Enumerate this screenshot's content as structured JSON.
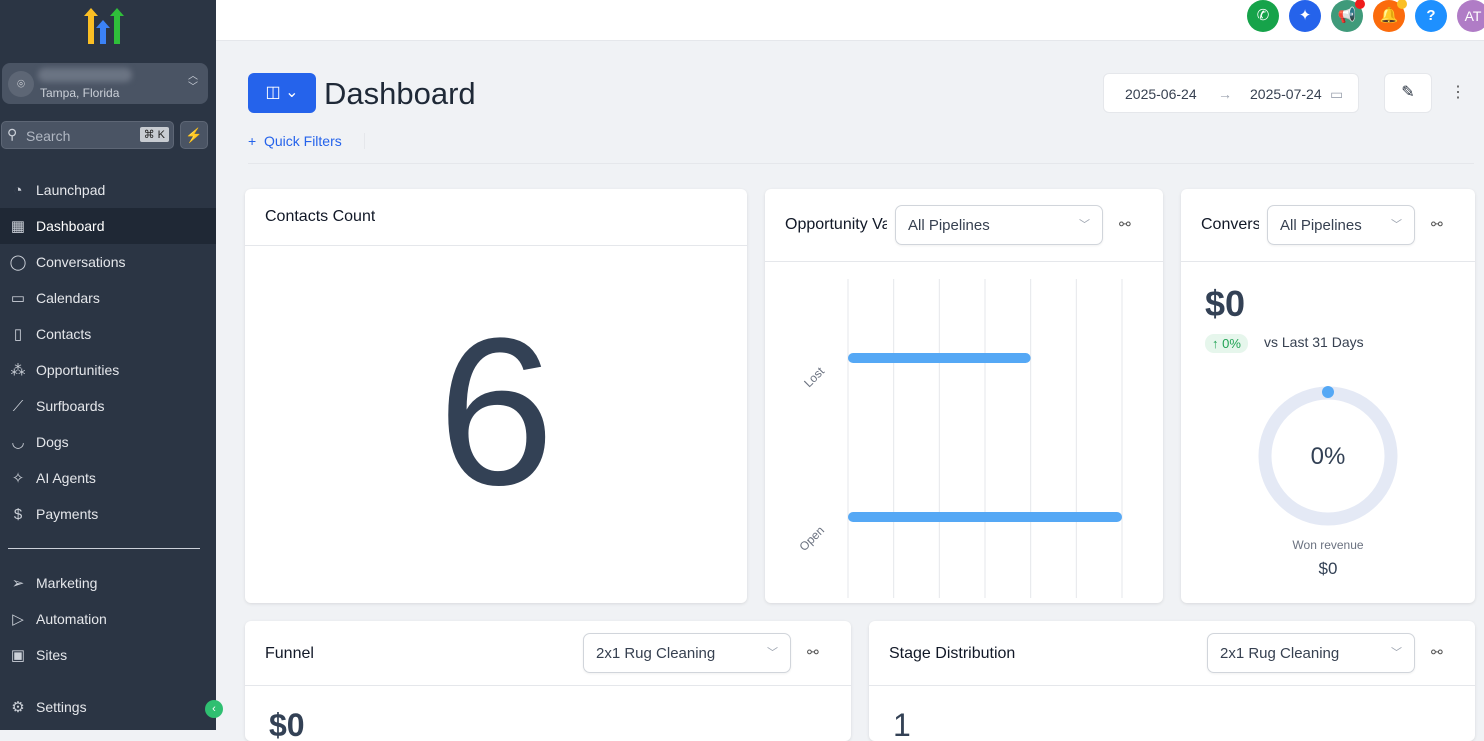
{
  "sidebar": {
    "location": "Tampa, Florida",
    "search_placeholder": "Search",
    "shortcut": "⌘ K",
    "items": [
      {
        "label": "Launchpad",
        "icon": "rocket-icon"
      },
      {
        "label": "Dashboard",
        "icon": "grid-icon"
      },
      {
        "label": "Conversations",
        "icon": "chat-icon"
      },
      {
        "label": "Calendars",
        "icon": "calendar-icon"
      },
      {
        "label": "Contacts",
        "icon": "contacts-icon"
      },
      {
        "label": "Opportunities",
        "icon": "network-icon"
      },
      {
        "label": "Surfboards",
        "icon": "surfboard-icon"
      },
      {
        "label": "Dogs",
        "icon": "dog-icon"
      },
      {
        "label": "AI Agents",
        "icon": "sparkle-icon"
      },
      {
        "label": "Payments",
        "icon": "receipt-icon"
      }
    ],
    "bottom_items": [
      {
        "label": "Marketing",
        "icon": "send-icon"
      },
      {
        "label": "Automation",
        "icon": "automation-icon"
      },
      {
        "label": "Sites",
        "icon": "sites-icon"
      }
    ],
    "settings": "Settings"
  },
  "topbar": {
    "avatar": "AT",
    "help": "?",
    "colors": {
      "phone": "#16a34a",
      "ai": "#2563eb",
      "announce": "#3f9a7a",
      "bell": "#fb6b0c",
      "help": "#1e90ff",
      "avatar": "#b07cc6"
    }
  },
  "header": {
    "title": "Dashboard",
    "date_from": "2025-06-24",
    "date_to": "2025-07-24",
    "quick_filters": "Quick Filters"
  },
  "cards": {
    "contacts": {
      "title": "Contacts Count",
      "value": "6"
    },
    "opportunity": {
      "title": "Opportunity Value",
      "select": "All Pipelines"
    },
    "conversion": {
      "title": "Conversion Rate",
      "select": "All Pipelines",
      "value": "$0",
      "change": "↑ 0%",
      "compare": "vs Last 31 Days",
      "percent": "0%",
      "won_label": "Won revenue",
      "won_value": "$0"
    },
    "funnel": {
      "title": "Funnel",
      "select": "2x1 Rug Cleaning",
      "value": "$0"
    },
    "stage": {
      "title": "Stage Distribution",
      "select": "2x1 Rug Cleaning",
      "value": "1"
    }
  },
  "chart_data": {
    "type": "bar",
    "orientation": "horizontal",
    "categories": [
      "Lost",
      "Open"
    ],
    "values": [
      4,
      6
    ],
    "xlim": [
      0,
      6
    ],
    "grid": true,
    "color": "#55a8f5"
  }
}
